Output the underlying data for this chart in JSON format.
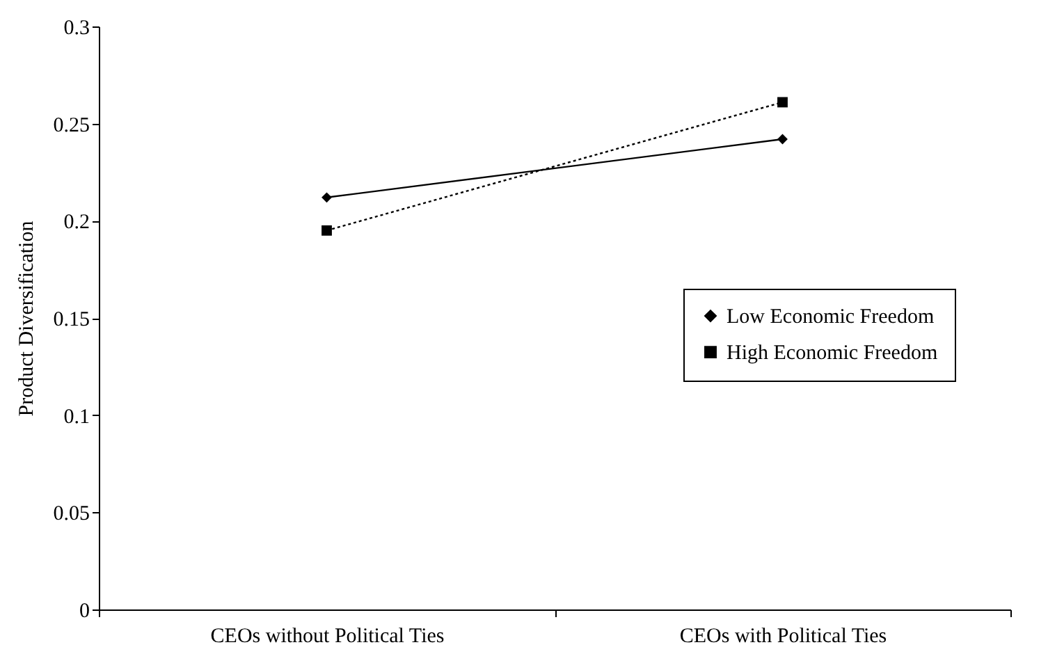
{
  "chart_data": {
    "type": "line",
    "ylabel": "Product Diversification",
    "categories": [
      "CEOs without Political Ties",
      "CEOs with Political Ties"
    ],
    "series": [
      {
        "name": "Low Economic Freedom",
        "color": "#000000",
        "values": [
          0.212,
          0.242
        ],
        "marker": "diamond",
        "line_style": "solid"
      },
      {
        "name": "High Economic Freedom",
        "color": "#000000",
        "values": [
          0.195,
          0.261
        ],
        "marker": "square",
        "line_style": "dotted"
      }
    ],
    "ylim": [
      0,
      0.3
    ],
    "yticks": [
      0,
      0.05,
      0.1,
      0.15,
      0.2,
      0.25,
      0.3
    ],
    "grid": false,
    "legend": "right"
  }
}
